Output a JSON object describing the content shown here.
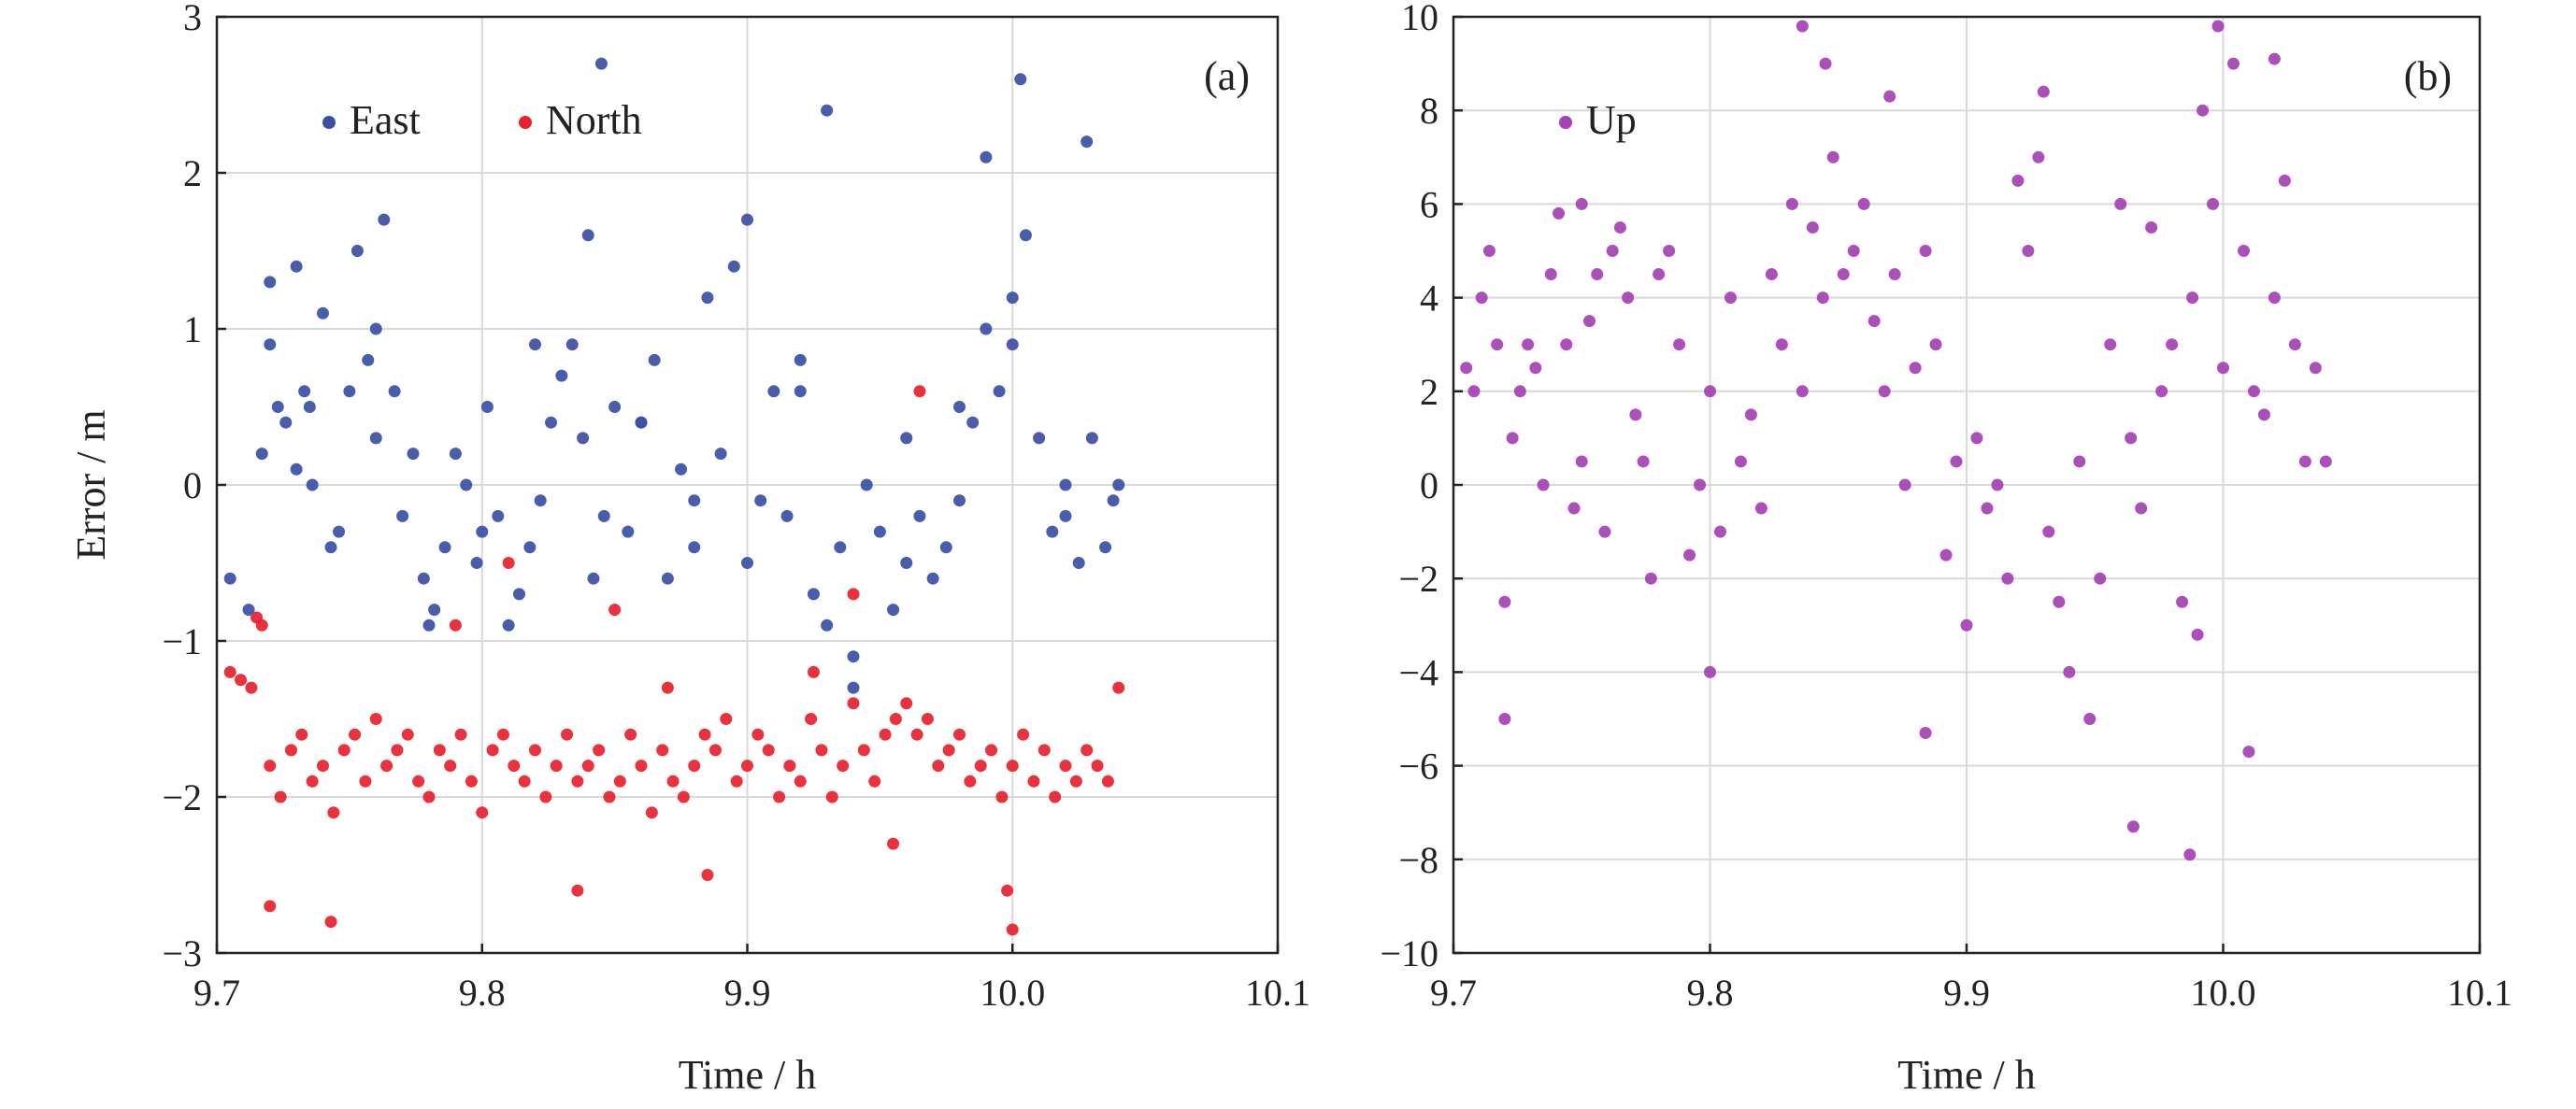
{
  "chart_data": [
    {
      "type": "scatter",
      "panel_label": "(a)",
      "xlabel": "Time / h",
      "ylabel": "Error / m",
      "xlim": [
        9.7,
        10.1
      ],
      "ylim": [
        -3,
        3
      ],
      "xticks": [
        9.7,
        9.8,
        9.9,
        10.0,
        10.1
      ],
      "xtick_labels": [
        "9.7",
        "9.8",
        "9.9",
        "10.0",
        "10.1"
      ],
      "yticks": [
        -3,
        -2,
        -1,
        0,
        1,
        2,
        3
      ],
      "ytick_labels": [
        "−3",
        "−2",
        "−1",
        "0",
        "1",
        "2",
        "3"
      ],
      "grid": true,
      "legend_position": "top-left",
      "series": [
        {
          "name": "East",
          "color": "#3b4fa6",
          "x": [
            9.705,
            9.712,
            9.717,
            9.72,
            9.723,
            9.726,
            9.73,
            9.733,
            9.736,
            9.74,
            9.743,
            9.746,
            9.75,
            9.753,
            9.757,
            9.76,
            9.763,
            9.767,
            9.77,
            9.774,
            9.778,
            9.782,
            9.786,
            9.79,
            9.794,
            9.798,
            9.802,
            9.806,
            9.81,
            9.814,
            9.818,
            9.822,
            9.826,
            9.83,
            9.834,
            9.838,
            9.842,
            9.846,
            9.85,
            9.855,
            9.86,
            9.865,
            9.87,
            9.875,
            9.88,
            9.885,
            9.89,
            9.895,
            9.9,
            9.905,
            9.91,
            9.915,
            9.92,
            9.925,
            9.93,
            9.935,
            9.94,
            9.945,
            9.95,
            9.955,
            9.96,
            9.965,
            9.97,
            9.975,
            9.98,
            9.985,
            9.99,
            9.995,
            10.0,
            10.005,
            10.01,
            10.015,
            10.02,
            10.025,
            10.03,
            10.035,
            10.04,
            9.845,
            9.93,
            10.003,
            10.028,
            9.99,
            9.73,
            9.72,
            9.735,
            9.76,
            9.78,
            9.8,
            9.82,
            9.84,
            9.86,
            9.88,
            9.9,
            9.92,
            9.94,
            9.96,
            9.98,
            10.0,
            10.02,
            10.038
          ],
          "y": [
            -0.6,
            -0.8,
            0.2,
            0.9,
            0.5,
            0.4,
            1.4,
            0.6,
            0.0,
            1.1,
            -0.4,
            -0.3,
            0.6,
            1.5,
            0.8,
            0.3,
            1.7,
            0.6,
            -0.2,
            0.2,
            -0.6,
            -0.8,
            -0.4,
            0.2,
            0.0,
            -0.5,
            0.5,
            -0.2,
            -0.9,
            -0.7,
            -0.4,
            -0.1,
            0.4,
            0.7,
            0.9,
            0.3,
            -0.6,
            -0.2,
            0.5,
            -0.3,
            0.4,
            0.8,
            -0.6,
            0.1,
            -0.4,
            1.2,
            0.2,
            1.4,
            -0.5,
            -0.1,
            0.6,
            -0.2,
            0.8,
            -0.7,
            -0.9,
            -0.4,
            -1.1,
            0.0,
            -0.3,
            -0.8,
            -0.5,
            -0.2,
            -0.6,
            -0.4,
            -0.1,
            0.4,
            1.0,
            0.6,
            0.9,
            1.6,
            0.3,
            -0.3,
            0.0,
            -0.5,
            0.3,
            -0.4,
            0.0,
            2.7,
            2.4,
            2.6,
            2.2,
            2.1,
            0.1,
            1.3,
            0.5,
            1.0,
            -0.9,
            -0.3,
            0.9,
            1.6,
            0.4,
            -0.1,
            1.7,
            0.6,
            -1.3,
            0.3,
            0.5,
            1.2,
            -0.2,
            -0.1
          ]
        },
        {
          "name": "North",
          "color": "#e8212e",
          "x": [
            9.705,
            9.709,
            9.713,
            9.717,
            9.72,
            9.724,
            9.728,
            9.732,
            9.736,
            9.74,
            9.744,
            9.748,
            9.752,
            9.756,
            9.76,
            9.764,
            9.768,
            9.772,
            9.776,
            9.78,
            9.784,
            9.788,
            9.792,
            9.796,
            9.8,
            9.804,
            9.808,
            9.812,
            9.816,
            9.82,
            9.824,
            9.828,
            9.832,
            9.836,
            9.84,
            9.844,
            9.848,
            9.852,
            9.856,
            9.86,
            9.864,
            9.868,
            9.872,
            9.876,
            9.88,
            9.884,
            9.888,
            9.892,
            9.896,
            9.9,
            9.904,
            9.908,
            9.912,
            9.916,
            9.92,
            9.924,
            9.928,
            9.932,
            9.936,
            9.94,
            9.944,
            9.948,
            9.952,
            9.956,
            9.96,
            9.964,
            9.968,
            9.972,
            9.976,
            9.98,
            9.984,
            9.988,
            9.992,
            9.996,
            10.0,
            10.004,
            10.008,
            10.012,
            10.016,
            10.02,
            10.024,
            10.028,
            10.032,
            10.036,
            10.04,
            9.72,
            9.743,
            9.836,
            9.885,
            9.998,
            10.0,
            9.715,
            9.94,
            9.965,
            9.81,
            9.79,
            9.925,
            9.955,
            9.87,
            9.85
          ],
          "y": [
            -1.2,
            -1.25,
            -1.3,
            -0.9,
            -1.8,
            -2.0,
            -1.7,
            -1.6,
            -1.9,
            -1.8,
            -2.1,
            -1.7,
            -1.6,
            -1.9,
            -1.5,
            -1.8,
            -1.7,
            -1.6,
            -1.9,
            -2.0,
            -1.7,
            -1.8,
            -1.6,
            -1.9,
            -2.1,
            -1.7,
            -1.6,
            -1.8,
            -1.9,
            -1.7,
            -2.0,
            -1.8,
            -1.6,
            -1.9,
            -1.8,
            -1.7,
            -2.0,
            -1.9,
            -1.6,
            -1.8,
            -2.1,
            -1.7,
            -1.9,
            -2.0,
            -1.8,
            -1.6,
            -1.7,
            -1.5,
            -1.9,
            -1.8,
            -1.6,
            -1.7,
            -2.0,
            -1.8,
            -1.9,
            -1.5,
            -1.7,
            -2.0,
            -1.8,
            -1.4,
            -1.7,
            -1.9,
            -1.6,
            -1.5,
            -1.4,
            -1.6,
            -1.5,
            -1.8,
            -1.7,
            -1.6,
            -1.9,
            -1.8,
            -1.7,
            -2.0,
            -1.8,
            -1.6,
            -1.9,
            -1.7,
            -2.0,
            -1.8,
            -1.9,
            -1.7,
            -1.8,
            -1.9,
            -1.3,
            -2.7,
            -2.8,
            -2.6,
            -2.5,
            -2.6,
            -2.85,
            -0.85,
            -0.7,
            0.6,
            -0.5,
            -0.9,
            -1.2,
            -2.3,
            -1.3,
            -0.8
          ]
        }
      ]
    },
    {
      "type": "scatter",
      "panel_label": "(b)",
      "xlabel": "Time / h",
      "ylabel": "",
      "xlim": [
        9.7,
        10.1
      ],
      "ylim": [
        -10,
        10
      ],
      "xticks": [
        9.7,
        9.8,
        9.9,
        10.0,
        10.1
      ],
      "xtick_labels": [
        "9.7",
        "9.8",
        "9.9",
        "10.0",
        "10.1"
      ],
      "yticks": [
        -10,
        -8,
        -6,
        -4,
        -2,
        0,
        2,
        4,
        6,
        8,
        10
      ],
      "ytick_labels": [
        "−10",
        "−8",
        "−6",
        "−4",
        "−2",
        "0",
        "2",
        "4",
        "6",
        "8",
        "10"
      ],
      "grid": true,
      "legend_position": "top-left",
      "series": [
        {
          "name": "Up",
          "color": "#a540b5",
          "x": [
            9.705,
            9.708,
            9.711,
            9.714,
            9.717,
            9.72,
            9.723,
            9.726,
            9.729,
            9.732,
            9.735,
            9.738,
            9.741,
            9.744,
            9.747,
            9.75,
            9.753,
            9.756,
            9.759,
            9.762,
            9.765,
            9.768,
            9.771,
            9.774,
            9.777,
            9.78,
            9.784,
            9.788,
            9.792,
            9.796,
            9.8,
            9.804,
            9.808,
            9.812,
            9.816,
            9.82,
            9.824,
            9.828,
            9.832,
            9.836,
            9.84,
            9.844,
            9.848,
            9.852,
            9.856,
            9.86,
            9.864,
            9.868,
            9.872,
            9.876,
            9.88,
            9.884,
            9.888,
            9.892,
            9.896,
            9.9,
            9.904,
            9.908,
            9.912,
            9.916,
            9.92,
            9.924,
            9.928,
            9.932,
            9.936,
            9.94,
            9.944,
            9.948,
            9.952,
            9.956,
            9.96,
            9.964,
            9.968,
            9.972,
            9.976,
            9.98,
            9.984,
            9.988,
            9.992,
            9.996,
            10.0,
            10.004,
            10.008,
            10.012,
            10.016,
            10.02,
            10.024,
            10.028,
            10.032,
            10.036,
            10.04,
            9.72,
            9.8,
            9.836,
            9.845,
            9.965,
            9.987,
            9.998,
            9.99,
            10.01,
            9.884,
            9.75,
            9.93,
            10.02,
            9.87
          ],
          "y": [
            2.5,
            2.0,
            4.0,
            5.0,
            3.0,
            -2.5,
            1.0,
            2.0,
            3.0,
            2.5,
            0.0,
            4.5,
            5.8,
            3.0,
            -0.5,
            0.5,
            3.5,
            4.5,
            -1.0,
            5.0,
            5.5,
            4.0,
            1.5,
            0.5,
            -2.0,
            4.5,
            5.0,
            3.0,
            -1.5,
            0.0,
            2.0,
            -1.0,
            4.0,
            0.5,
            1.5,
            -0.5,
            4.5,
            3.0,
            6.0,
            2.0,
            5.5,
            4.0,
            7.0,
            4.5,
            5.0,
            6.0,
            3.5,
            2.0,
            4.5,
            0.0,
            2.5,
            5.0,
            3.0,
            -1.5,
            0.5,
            -3.0,
            1.0,
            -0.5,
            0.0,
            -2.0,
            6.5,
            5.0,
            7.0,
            -1.0,
            -2.5,
            -4.0,
            0.5,
            -5.0,
            -2.0,
            3.0,
            6.0,
            1.0,
            -0.5,
            5.5,
            2.0,
            3.0,
            -2.5,
            4.0,
            8.0,
            6.0,
            2.5,
            9.0,
            5.0,
            2.0,
            1.5,
            4.0,
            6.5,
            3.0,
            0.5,
            2.5,
            0.5,
            -5.0,
            -4.0,
            9.8,
            9.0,
            -7.3,
            -7.9,
            9.8,
            -3.2,
            -5.7,
            -5.3,
            6.0,
            8.4,
            9.1,
            8.3
          ]
        }
      ]
    }
  ]
}
